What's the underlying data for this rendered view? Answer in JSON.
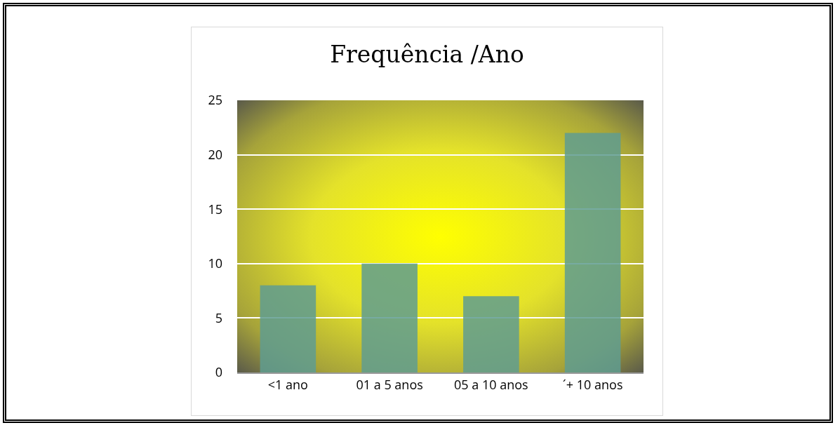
{
  "chart_data": {
    "type": "bar",
    "title": "Frequência /Ano",
    "categories": [
      "<1 ano",
      "01 a 5 anos",
      "05 a 10 anos",
      "´+ 10 anos"
    ],
    "values": [
      8,
      10,
      7,
      22
    ],
    "color": "#5f9c90",
    "ylim": [
      0,
      25
    ],
    "yticks": [
      0,
      5,
      10,
      15,
      20,
      25
    ],
    "grid": "y"
  }
}
